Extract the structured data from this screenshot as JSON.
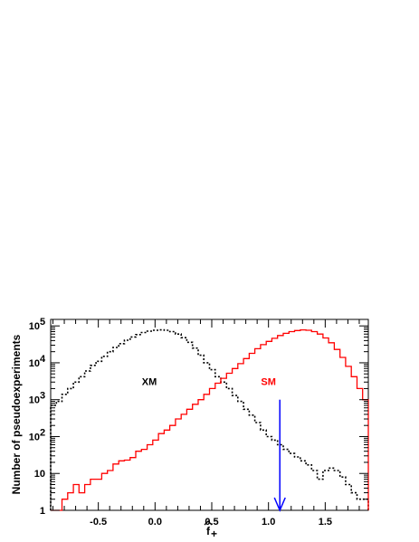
{
  "chart_data": {
    "type": "histogram",
    "ylabel": "Number of pseudoexperiments",
    "xlabel_symbol": "f",
    "xlabel_subscript": "+",
    "xlim": [
      -0.92,
      1.88
    ],
    "ylim": [
      1,
      150000
    ],
    "y_scale": "log",
    "x_ticks": [
      {
        "value": -0.5,
        "label": "-0.5"
      },
      {
        "value": 0.0,
        "label": "0.0"
      },
      {
        "value": 0.5,
        "label": "0.5"
      },
      {
        "value": 1.0,
        "label": "1.0"
      },
      {
        "value": 1.5,
        "label": "1.5"
      }
    ],
    "y_ticks": [
      {
        "value": 1,
        "label": "1"
      },
      {
        "value": 10,
        "label": "10"
      },
      {
        "value": 100,
        "label": "10",
        "exp": "2"
      },
      {
        "value": 1000,
        "label": "10",
        "exp": "3"
      },
      {
        "value": 10000,
        "label": "10",
        "exp": "4"
      },
      {
        "value": 100000,
        "label": "10",
        "exp": "5"
      }
    ],
    "bin_width": 0.05,
    "series": [
      {
        "name": "XM",
        "color": "#000000",
        "style": "dotted",
        "x_start": -0.92,
        "values": [
          700,
          900,
          1400,
          2000,
          3000,
          4200,
          6000,
          8500,
          11000,
          15000,
          20000,
          26000,
          33000,
          41000,
          50000,
          58000,
          66000,
          72000,
          76000,
          78000,
          76000,
          70000,
          60000,
          48000,
          36000,
          25000,
          16000,
          10000,
          6500,
          4200,
          3000,
          2000,
          1300,
          900,
          550,
          380,
          240,
          150,
          100,
          80,
          60,
          45,
          35,
          28,
          22,
          17,
          12,
          7,
          12,
          14,
          12,
          8,
          5,
          3,
          2,
          2
        ]
      },
      {
        "name": "SM",
        "color": "#ff0000",
        "style": "solid",
        "x_start": -0.92,
        "values": [
          1,
          1,
          2,
          3,
          5,
          3,
          5,
          7,
          7,
          10,
          12,
          18,
          22,
          23,
          27,
          40,
          45,
          60,
          80,
          120,
          150,
          200,
          300,
          400,
          550,
          750,
          1000,
          1400,
          2000,
          2800,
          3800,
          5200,
          7000,
          9500,
          13000,
          18000,
          24000,
          31000,
          38000,
          46000,
          55000,
          63000,
          70000,
          75000,
          78000,
          76000,
          70000,
          60000,
          47000,
          35000,
          23000,
          14000,
          8000,
          4200,
          2000,
          1000
        ]
      }
    ],
    "annotations": [
      {
        "text": "XM",
        "x": -0.05,
        "y": 2500,
        "color": "#000000"
      },
      {
        "text": "SM",
        "x": 1.0,
        "y": 2500,
        "color": "#ff0000"
      }
    ],
    "arrow": {
      "x": 1.1,
      "y_from": 1000,
      "y_to": 1,
      "color": "#0000ff"
    }
  }
}
